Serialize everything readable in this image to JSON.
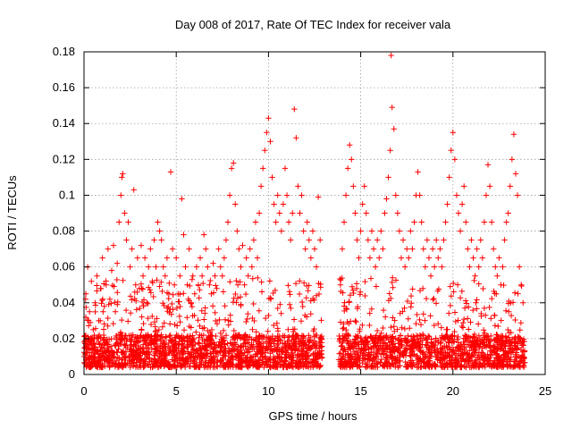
{
  "chart_data": {
    "type": "scatter",
    "title": "Day 008 of 2017, Rate Of TEC Index for receiver vala",
    "xlabel": "GPS time / hours",
    "ylabel": "ROTI / TECUs",
    "xlim": [
      0,
      25
    ],
    "ylim": [
      0,
      0.18
    ],
    "x_ticks": [
      "0",
      "5",
      "10",
      "15",
      "20",
      "25"
    ],
    "y_ticks": [
      "0",
      "0.02",
      "0.04",
      "0.06",
      "0.08",
      "0.1",
      "0.12",
      "0.14",
      "0.16",
      "0.18"
    ],
    "grid": true,
    "marker": "+",
    "color": "#ff0000",
    "data_gap_hours": [
      12.9,
      13.8
    ],
    "series": [
      {
        "points": [
          [
            0.0,
            0.018
          ],
          [
            0.1,
            0.045
          ],
          [
            0.2,
            0.06
          ],
          [
            0.3,
            0.035
          ],
          [
            0.4,
            0.052
          ],
          [
            0.5,
            0.025
          ],
          [
            0.6,
            0.04
          ],
          [
            0.7,
            0.055
          ],
          [
            0.8,
            0.03
          ],
          [
            0.9,
            0.048
          ],
          [
            1.0,
            0.065
          ],
          [
            1.1,
            0.038
          ],
          [
            1.2,
            0.05
          ],
          [
            1.3,
            0.07
          ],
          [
            1.4,
            0.042
          ],
          [
            1.5,
            0.058
          ],
          [
            1.6,
            0.072
          ],
          [
            1.7,
            0.035
          ],
          [
            1.8,
            0.062
          ],
          [
            1.9,
            0.085
          ],
          [
            2.0,
            0.1
          ],
          [
            2.05,
            0.11
          ],
          [
            2.1,
            0.112
          ],
          [
            2.2,
            0.09
          ],
          [
            2.3,
            0.075
          ],
          [
            2.4,
            0.085
          ],
          [
            2.5,
            0.06
          ],
          [
            2.6,
            0.07
          ],
          [
            2.7,
            0.103
          ],
          [
            2.8,
            0.05
          ],
          [
            2.9,
            0.065
          ],
          [
            3.0,
            0.048
          ],
          [
            3.1,
            0.072
          ],
          [
            3.2,
            0.055
          ],
          [
            3.3,
            0.065
          ],
          [
            3.4,
            0.04
          ],
          [
            3.5,
            0.06
          ],
          [
            3.6,
            0.07
          ],
          [
            3.7,
            0.052
          ],
          [
            3.8,
            0.075
          ],
          [
            3.9,
            0.06
          ],
          [
            4.0,
            0.085
          ],
          [
            4.1,
            0.08
          ],
          [
            4.2,
            0.075
          ],
          [
            4.3,
            0.06
          ],
          [
            4.4,
            0.055
          ],
          [
            4.5,
            0.065
          ],
          [
            4.6,
            0.045
          ],
          [
            4.7,
            0.113
          ],
          [
            4.8,
            0.07
          ],
          [
            4.9,
            0.05
          ],
          [
            5.0,
            0.065
          ],
          [
            5.1,
            0.045
          ],
          [
            5.2,
            0.055
          ],
          [
            5.3,
            0.098
          ],
          [
            5.4,
            0.078
          ],
          [
            5.5,
            0.06
          ],
          [
            5.6,
            0.05
          ],
          [
            5.7,
            0.07
          ],
          [
            5.8,
            0.04
          ],
          [
            5.9,
            0.055
          ],
          [
            6.0,
            0.045
          ],
          [
            6.1,
            0.06
          ],
          [
            6.2,
            0.05
          ],
          [
            6.3,
            0.065
          ],
          [
            6.4,
            0.055
          ],
          [
            6.5,
            0.078
          ],
          [
            6.6,
            0.07
          ],
          [
            6.7,
            0.06
          ],
          [
            6.8,
            0.05
          ],
          [
            6.9,
            0.045
          ],
          [
            7.0,
            0.062
          ],
          [
            7.1,
            0.055
          ],
          [
            7.2,
            0.048
          ],
          [
            7.3,
            0.07
          ],
          [
            7.4,
            0.06
          ],
          [
            7.5,
            0.055
          ],
          [
            7.6,
            0.065
          ],
          [
            7.7,
            0.075
          ],
          [
            7.8,
            0.085
          ],
          [
            7.9,
            0.1
          ],
          [
            8.0,
            0.115
          ],
          [
            8.1,
            0.118
          ],
          [
            8.2,
            0.095
          ],
          [
            8.3,
            0.08
          ],
          [
            8.4,
            0.07
          ],
          [
            8.5,
            0.06
          ],
          [
            8.6,
            0.072
          ],
          [
            8.7,
            0.05
          ],
          [
            8.8,
            0.065
          ],
          [
            8.9,
            0.055
          ],
          [
            9.0,
            0.07
          ],
          [
            9.1,
            0.06
          ],
          [
            9.2,
            0.075
          ],
          [
            9.3,
            0.085
          ],
          [
            9.4,
            0.065
          ],
          [
            9.5,
            0.09
          ],
          [
            9.6,
            0.105
          ],
          [
            9.7,
            0.115
          ],
          [
            9.8,
            0.125
          ],
          [
            9.9,
            0.135
          ],
          [
            10.0,
            0.143
          ],
          [
            10.1,
            0.13
          ],
          [
            10.2,
            0.11
          ],
          [
            10.3,
            0.095
          ],
          [
            10.4,
            0.085
          ],
          [
            10.5,
            0.1
          ],
          [
            10.6,
            0.09
          ],
          [
            10.7,
            0.08
          ],
          [
            10.8,
            0.095
          ],
          [
            10.9,
            0.115
          ],
          [
            11.0,
            0.1
          ],
          [
            11.1,
            0.085
          ],
          [
            11.2,
            0.075
          ],
          [
            11.3,
            0.09
          ],
          [
            11.4,
            0.148
          ],
          [
            11.5,
            0.132
          ],
          [
            11.6,
            0.105
          ],
          [
            11.7,
            0.09
          ],
          [
            11.8,
            0.1
          ],
          [
            11.9,
            0.08
          ],
          [
            12.0,
            0.07
          ],
          [
            12.1,
            0.085
          ],
          [
            12.2,
            0.075
          ],
          [
            12.3,
            0.065
          ],
          [
            12.4,
            0.08
          ],
          [
            12.5,
            0.07
          ],
          [
            12.6,
            0.06
          ],
          [
            12.7,
            0.099
          ],
          [
            12.8,
            0.075
          ],
          [
            13.9,
            0.05
          ],
          [
            14.0,
            0.07
          ],
          [
            14.1,
            0.085
          ],
          [
            14.2,
            0.1
          ],
          [
            14.3,
            0.115
          ],
          [
            14.4,
            0.128
          ],
          [
            14.5,
            0.12
          ],
          [
            14.6,
            0.105
          ],
          [
            14.7,
            0.09
          ],
          [
            14.8,
            0.075
          ],
          [
            14.9,
            0.065
          ],
          [
            15.0,
            0.08
          ],
          [
            15.1,
            0.095
          ],
          [
            15.2,
            0.105
          ],
          [
            15.3,
            0.09
          ],
          [
            15.4,
            0.075
          ],
          [
            15.5,
            0.065
          ],
          [
            15.6,
            0.08
          ],
          [
            15.7,
            0.07
          ],
          [
            15.8,
            0.06
          ],
          [
            15.9,
            0.075
          ],
          [
            16.0,
            0.065
          ],
          [
            16.1,
            0.08
          ],
          [
            16.2,
            0.07
          ],
          [
            16.3,
            0.09
          ],
          [
            16.4,
            0.098
          ],
          [
            16.5,
            0.11
          ],
          [
            16.6,
            0.125
          ],
          [
            16.65,
            0.178
          ],
          [
            16.7,
            0.149
          ],
          [
            16.8,
            0.137
          ],
          [
            16.9,
            0.1
          ],
          [
            17.0,
            0.09
          ],
          [
            17.1,
            0.08
          ],
          [
            17.2,
            0.065
          ],
          [
            17.3,
            0.075
          ],
          [
            17.4,
            0.06
          ],
          [
            17.5,
            0.07
          ],
          [
            17.6,
            0.065
          ],
          [
            17.7,
            0.08
          ],
          [
            17.8,
            0.07
          ],
          [
            17.9,
            0.085
          ],
          [
            18.0,
            0.1
          ],
          [
            18.1,
            0.113
          ],
          [
            18.2,
            0.1
          ],
          [
            18.3,
            0.085
          ],
          [
            18.4,
            0.07
          ],
          [
            18.5,
            0.06
          ],
          [
            18.6,
            0.075
          ],
          [
            18.7,
            0.065
          ],
          [
            18.8,
            0.055
          ],
          [
            18.9,
            0.07
          ],
          [
            19.0,
            0.06
          ],
          [
            19.1,
            0.075
          ],
          [
            19.2,
            0.065
          ],
          [
            19.3,
            0.07
          ],
          [
            19.4,
            0.06
          ],
          [
            19.5,
            0.075
          ],
          [
            19.6,
            0.085
          ],
          [
            19.7,
            0.095
          ],
          [
            19.8,
            0.11
          ],
          [
            19.9,
            0.125
          ],
          [
            20.0,
            0.135
          ],
          [
            20.1,
            0.12
          ],
          [
            20.2,
            0.1
          ],
          [
            20.3,
            0.09
          ],
          [
            20.4,
            0.08
          ],
          [
            20.5,
            0.095
          ],
          [
            20.6,
            0.105
          ],
          [
            20.7,
            0.085
          ],
          [
            20.8,
            0.07
          ],
          [
            20.9,
            0.06
          ],
          [
            21.0,
            0.075
          ],
          [
            21.1,
            0.065
          ],
          [
            21.2,
            0.055
          ],
          [
            21.3,
            0.07
          ],
          [
            21.4,
            0.06
          ],
          [
            21.5,
            0.075
          ],
          [
            21.6,
            0.065
          ],
          [
            21.7,
            0.085
          ],
          [
            21.8,
            0.1
          ],
          [
            21.9,
            0.117
          ],
          [
            22.0,
            0.105
          ],
          [
            22.1,
            0.085
          ],
          [
            22.2,
            0.07
          ],
          [
            22.3,
            0.06
          ],
          [
            22.4,
            0.055
          ],
          [
            22.5,
            0.065
          ],
          [
            22.6,
            0.05
          ],
          [
            22.7,
            0.06
          ],
          [
            22.8,
            0.075
          ],
          [
            22.9,
            0.085
          ],
          [
            23.0,
            0.09
          ],
          [
            23.1,
            0.105
          ],
          [
            23.2,
            0.12
          ],
          [
            23.3,
            0.134
          ],
          [
            23.4,
            0.112
          ],
          [
            23.5,
            0.1
          ],
          [
            23.6,
            0.06
          ],
          [
            23.7,
            0.05
          ],
          [
            23.8,
            0.04
          ]
        ]
      }
    ]
  }
}
